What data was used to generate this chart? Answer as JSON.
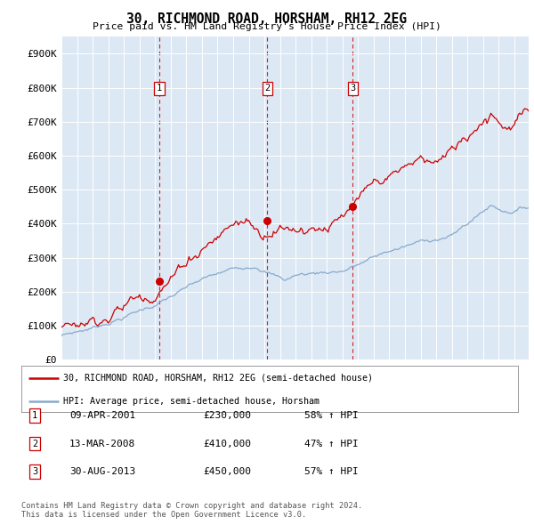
{
  "title": "30, RICHMOND ROAD, HORSHAM, RH12 2EG",
  "subtitle": "Price paid vs. HM Land Registry's House Price Index (HPI)",
  "background_color": "#dde8f5",
  "plot_bg_color": "#dde8f5",
  "ylim": [
    0,
    950000
  ],
  "yticks": [
    0,
    100000,
    200000,
    300000,
    400000,
    500000,
    600000,
    700000,
    800000,
    900000
  ],
  "ytick_labels": [
    "£0",
    "£100K",
    "£200K",
    "£300K",
    "£400K",
    "£500K",
    "£600K",
    "£700K",
    "£800K",
    "£900K"
  ],
  "legend_label_red": "30, RICHMOND ROAD, HORSHAM, RH12 2EG (semi-detached house)",
  "legend_label_blue": "HPI: Average price, semi-detached house, Horsham",
  "sale_dates_year": [
    2001.27,
    2008.19,
    2013.66
  ],
  "sale_prices": [
    230000,
    410000,
    450000
  ],
  "sale_labels": [
    "1",
    "2",
    "3"
  ],
  "sale_info": [
    {
      "num": "1",
      "date": "09-APR-2001",
      "price": "£230,000",
      "pct": "58% ↑ HPI"
    },
    {
      "num": "2",
      "date": "13-MAR-2008",
      "price": "£410,000",
      "pct": "47% ↑ HPI"
    },
    {
      "num": "3",
      "date": "30-AUG-2013",
      "price": "£450,000",
      "pct": "57% ↑ HPI"
    }
  ],
  "footer": "Contains HM Land Registry data © Crown copyright and database right 2024.\nThis data is licensed under the Open Government Licence v3.0.",
  "red_color": "#cc0000",
  "blue_color": "#88aacc",
  "vline_color": "#cc0000",
  "grid_color": "#ffffff"
}
